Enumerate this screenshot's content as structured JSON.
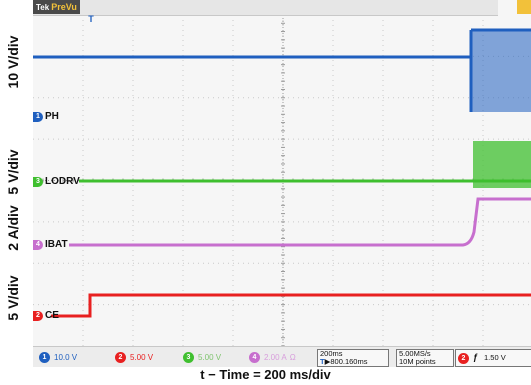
{
  "y_labels": {
    "ch1": "10 V/div",
    "ch3": "5 V/div",
    "ch4": "2 A/div",
    "ch2": "5 V/div"
  },
  "header": {
    "mode": "PreVu",
    "mode_prefix": "Tek",
    "trigger_marker": "T"
  },
  "channels": [
    {
      "id": "1",
      "name": "PH",
      "color": "#1f5fbf"
    },
    {
      "id": "3",
      "name": "LODRV",
      "color": "#3fbf2f"
    },
    {
      "id": "4",
      "name": "IBAT",
      "color": "#c76fce"
    },
    {
      "id": "2",
      "name": "CE",
      "color": "#e82020"
    }
  ],
  "status_bar": {
    "ch1_scale": "10.0 V",
    "ch2_scale": "5.00 V",
    "ch3_scale": "5.00 V",
    "ch4_scale": "2.00 A",
    "ch4_suffix": "Ω",
    "timebase": "200ms",
    "delay": "▶800.160ms",
    "sample_rate": "5.00MS/s",
    "record_length": "10M points",
    "trigger_slope": "ƒ",
    "trigger_level": "1.50 V"
  },
  "x_caption": "t − Time = 200 ms/div",
  "colors": {
    "accent": "#f2c13a",
    "screen": "#f6f6f6",
    "grid": "#c9c9c9"
  }
}
